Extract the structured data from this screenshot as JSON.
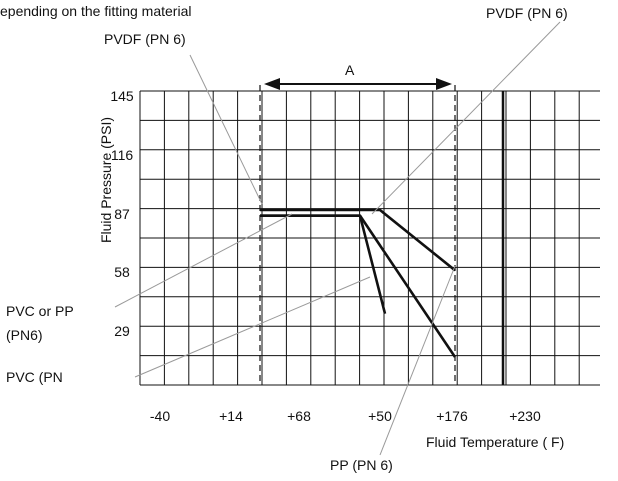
{
  "chart_data": {
    "type": "line",
    "caption_partial": "epending on the fitting material",
    "xlabel": "Fluid Temperature ( F)",
    "ylabel": "Fluid Pressure (PSI)",
    "x_tick_labels": [
      "-40",
      "+14",
      "+68",
      "+50",
      "+176",
      "+230"
    ],
    "y_tick_labels": [
      "145",
      "116",
      "87",
      "58",
      "29"
    ],
    "range_marker": {
      "label": "A",
      "from": "+14",
      "to": "+176"
    },
    "callouts": {
      "pvdf_top_right": "PVDF (PN 6)",
      "pvdf_top_left": "PVDF (PN 6)",
      "pvc_or_pp": "PVC or PP",
      "pvc_or_pp_sub": "(PN6)",
      "pvc": "PVC (PN",
      "pp_bottom": "PP (PN 6)"
    },
    "series": [
      {
        "name": "PVDF (PN 6)",
        "points": [
          [
            0,
            90
          ],
          [
            120,
            90
          ],
          [
            195,
            58
          ]
        ]
      },
      {
        "name": "PP (PN 6)",
        "points": [
          [
            0,
            87
          ],
          [
            100,
            87
          ],
          [
            195,
            12
          ]
        ]
      },
      {
        "name": "PVC or PP (PN6)",
        "points": [
          [
            0,
            87
          ],
          [
            100,
            87
          ],
          [
            125,
            35
          ]
        ]
      }
    ]
  }
}
